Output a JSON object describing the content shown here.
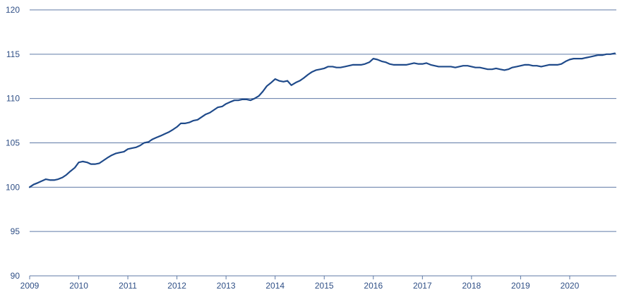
{
  "chart_data": {
    "type": "line",
    "title": "",
    "xlabel": "",
    "ylabel": "",
    "ylim": [
      90,
      120
    ],
    "xlim": [
      2009.0,
      2020.95
    ],
    "y_ticks": [
      90,
      95,
      100,
      105,
      110,
      115,
      120
    ],
    "x_ticks": [
      2009,
      2010,
      2011,
      2012,
      2013,
      2014,
      2015,
      2016,
      2017,
      2018,
      2019,
      2020
    ],
    "grid": "horizontal",
    "legend": "none",
    "colors": {
      "line": "#1f4a8a",
      "grid": "#5f7aa6",
      "axis_text": "#2f4f86"
    },
    "series": [
      {
        "x": [
          2009.0,
          2009.08,
          2009.17,
          2009.25,
          2009.33,
          2009.42,
          2009.5,
          2009.58,
          2009.67,
          2009.75,
          2009.83,
          2009.92,
          2010.0,
          2010.08,
          2010.17,
          2010.25,
          2010.33,
          2010.42,
          2010.5,
          2010.58,
          2010.67,
          2010.75,
          2010.83,
          2010.92,
          2011.0,
          2011.08,
          2011.17,
          2011.25,
          2011.33,
          2011.42,
          2011.5,
          2011.58,
          2011.67,
          2011.75,
          2011.83,
          2011.92,
          2012.0,
          2012.08,
          2012.17,
          2012.25,
          2012.33,
          2012.42,
          2012.5,
          2012.58,
          2012.67,
          2012.75,
          2012.83,
          2012.92,
          2013.0,
          2013.08,
          2013.17,
          2013.25,
          2013.33,
          2013.42,
          2013.5,
          2013.58,
          2013.67,
          2013.75,
          2013.83,
          2013.92,
          2014.0,
          2014.08,
          2014.17,
          2014.25,
          2014.33,
          2014.42,
          2014.5,
          2014.58,
          2014.67,
          2014.75,
          2014.83,
          2014.92,
          2015.0,
          2015.08,
          2015.17,
          2015.25,
          2015.33,
          2015.42,
          2015.5,
          2015.58,
          2015.67,
          2015.75,
          2015.83,
          2015.92,
          2016.0,
          2016.08,
          2016.17,
          2016.25,
          2016.33,
          2016.42,
          2016.5,
          2016.58,
          2016.67,
          2016.75,
          2016.83,
          2016.92,
          2017.0,
          2017.08,
          2017.17,
          2017.25,
          2017.33,
          2017.42,
          2017.5,
          2017.58,
          2017.67,
          2017.75,
          2017.83,
          2017.92,
          2018.0,
          2018.08,
          2018.17,
          2018.25,
          2018.33,
          2018.42,
          2018.5,
          2018.58,
          2018.67,
          2018.75,
          2018.83,
          2018.92,
          2019.0,
          2019.08,
          2019.17,
          2019.25,
          2019.33,
          2019.42,
          2019.5,
          2019.58,
          2019.67,
          2019.75,
          2019.83,
          2019.92,
          2020.0,
          2020.08,
          2020.17,
          2020.25,
          2020.33,
          2020.42,
          2020.5,
          2020.58,
          2020.67,
          2020.75,
          2020.83,
          2020.92
        ],
        "values": [
          100.0,
          100.3,
          100.5,
          100.7,
          100.9,
          100.8,
          100.8,
          100.9,
          101.1,
          101.4,
          101.8,
          102.2,
          102.8,
          102.9,
          102.8,
          102.6,
          102.6,
          102.7,
          103.0,
          103.3,
          103.6,
          103.8,
          103.9,
          104.0,
          104.3,
          104.4,
          104.5,
          104.7,
          105.0,
          105.1,
          105.4,
          105.6,
          105.8,
          106.0,
          106.2,
          106.5,
          106.8,
          107.2,
          107.2,
          107.3,
          107.5,
          107.6,
          107.9,
          108.2,
          108.4,
          108.7,
          109.0,
          109.1,
          109.4,
          109.6,
          109.8,
          109.8,
          109.9,
          109.9,
          109.8,
          110.0,
          110.3,
          110.8,
          111.4,
          111.8,
          112.2,
          112.0,
          111.9,
          112.0,
          111.5,
          111.8,
          112.0,
          112.3,
          112.7,
          113.0,
          113.2,
          113.3,
          113.4,
          113.6,
          113.6,
          113.5,
          113.5,
          113.6,
          113.7,
          113.8,
          113.8,
          113.8,
          113.9,
          114.1,
          114.5,
          114.4,
          114.2,
          114.1,
          113.9,
          113.8,
          113.8,
          113.8,
          113.8,
          113.9,
          114.0,
          113.9,
          113.9,
          114.0,
          113.8,
          113.7,
          113.6,
          113.6,
          113.6,
          113.6,
          113.5,
          113.6,
          113.7,
          113.7,
          113.6,
          113.5,
          113.5,
          113.4,
          113.3,
          113.3,
          113.4,
          113.3,
          113.2,
          113.3,
          113.5,
          113.6,
          113.7,
          113.8,
          113.8,
          113.7,
          113.7,
          113.6,
          113.7,
          113.8,
          113.8,
          113.8,
          113.9,
          114.2,
          114.4,
          114.5,
          114.5,
          114.5,
          114.6,
          114.7,
          114.8,
          114.9,
          114.9,
          115.0,
          115.0,
          115.1
        ]
      }
    ]
  }
}
